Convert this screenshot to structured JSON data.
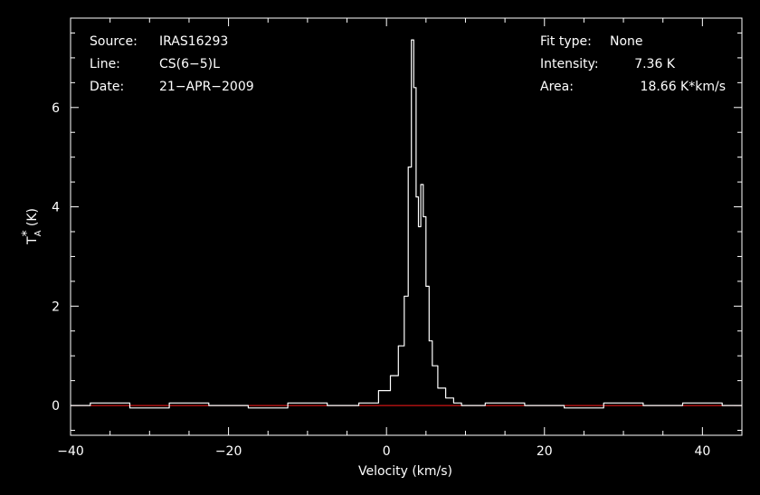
{
  "info": {
    "source_label": "Source:",
    "source_value": "IRAS16293",
    "line_label": "Line:",
    "line_value": "CS(6−5)L",
    "date_label": "Date:",
    "date_value": "21−APR−2009",
    "fit_label": "Fit type:",
    "fit_value": "None",
    "intensity_label": "Intensity:",
    "intensity_value": "7.36 K",
    "area_label": "Area:",
    "area_value": "18.66 K*km/s"
  },
  "chart_data": {
    "type": "line",
    "xlabel": "Velocity (km/s)",
    "ylabel_main": "T",
    "ylabel_sup": "*",
    "ylabel_sub": "A",
    "ylabel_unit": " (K)",
    "xlim": [
      -40,
      45
    ],
    "ylim": [
      -0.6,
      7.8
    ],
    "x_ticks": [
      -40,
      -20,
      0,
      20,
      40
    ],
    "x_tick_labels": [
      "−40",
      "−20",
      "0",
      "20",
      "40"
    ],
    "y_ticks": [
      0,
      2,
      4,
      6
    ],
    "y_tick_labels": [
      "0",
      "2",
      "4",
      "6"
    ],
    "baseline": 0,
    "series": [
      {
        "color": "#ffffff",
        "x": [
          -40,
          -35,
          -30,
          -25,
          -20,
          -15,
          -10,
          -5,
          -2,
          0,
          1,
          2,
          2.5,
          3,
          3.3,
          3.6,
          3.9,
          4.2,
          4.5,
          4.8,
          5.2,
          5.6,
          6,
          7,
          8,
          9,
          10,
          15,
          20,
          25,
          30,
          35,
          40,
          45
        ],
        "y": [
          0,
          0.05,
          -0.05,
          0.05,
          0,
          -0.05,
          0.05,
          0,
          0.05,
          0.3,
          0.6,
          1.2,
          2.2,
          4.8,
          7.36,
          6.4,
          4.2,
          3.6,
          4.45,
          3.8,
          2.4,
          1.3,
          0.8,
          0.35,
          0.15,
          0.05,
          0,
          0.05,
          0,
          -0.05,
          0.05,
          0,
          0.05,
          0
        ]
      }
    ]
  }
}
